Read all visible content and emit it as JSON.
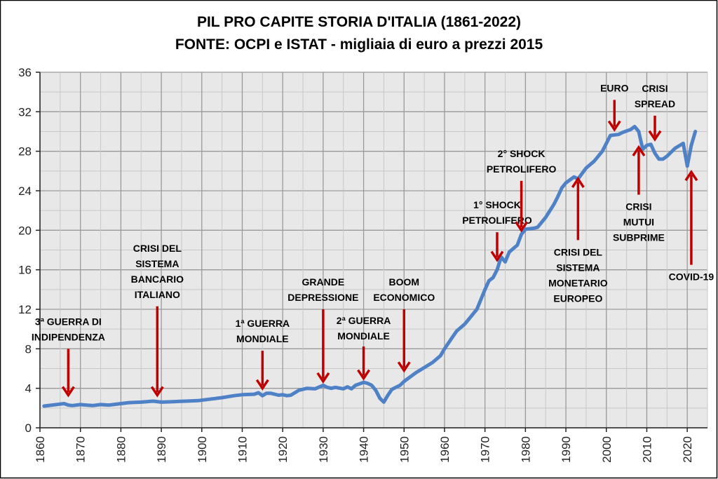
{
  "chart_data": {
    "type": "line",
    "title": "PIL PRO CAPITE STORIA D'ITALIA (1861-2022)",
    "subtitle": "FONTE: OCPI e ISTAT - migliaia di euro a prezzi 2015",
    "xlabel": "",
    "ylabel": "",
    "xlim": [
      1860,
      2025
    ],
    "ylim": [
      0,
      36
    ],
    "x_ticks": [
      "1860",
      "1870",
      "1880",
      "1890",
      "1900",
      "1910",
      "1920",
      "1930",
      "1940",
      "1950",
      "1960",
      "1970",
      "1980",
      "1990",
      "2000",
      "2010",
      "2020"
    ],
    "y_ticks": [
      "0",
      "4",
      "8",
      "12",
      "16",
      "20",
      "24",
      "28",
      "32",
      "36"
    ],
    "grid": true,
    "line_color": "#4f81c6",
    "arrow_color": "#c00000",
    "series": [
      {
        "name": "PIL pro capite",
        "points": [
          [
            1861,
            2.2
          ],
          [
            1863,
            2.3
          ],
          [
            1865,
            2.4
          ],
          [
            1866,
            2.45
          ],
          [
            1867,
            2.3
          ],
          [
            1868,
            2.25
          ],
          [
            1870,
            2.35
          ],
          [
            1873,
            2.25
          ],
          [
            1875,
            2.35
          ],
          [
            1877,
            2.3
          ],
          [
            1880,
            2.45
          ],
          [
            1882,
            2.55
          ],
          [
            1885,
            2.6
          ],
          [
            1888,
            2.7
          ],
          [
            1890,
            2.6
          ],
          [
            1893,
            2.65
          ],
          [
            1896,
            2.7
          ],
          [
            1899,
            2.75
          ],
          [
            1902,
            2.9
          ],
          [
            1905,
            3.05
          ],
          [
            1908,
            3.25
          ],
          [
            1910,
            3.35
          ],
          [
            1913,
            3.4
          ],
          [
            1914,
            3.55
          ],
          [
            1915,
            3.25
          ],
          [
            1916,
            3.5
          ],
          [
            1917,
            3.5
          ],
          [
            1919,
            3.3
          ],
          [
            1920,
            3.35
          ],
          [
            1921,
            3.25
          ],
          [
            1922,
            3.3
          ],
          [
            1924,
            3.8
          ],
          [
            1926,
            4.0
          ],
          [
            1928,
            3.95
          ],
          [
            1930,
            4.3
          ],
          [
            1931,
            4.1
          ],
          [
            1932,
            4.0
          ],
          [
            1933,
            4.1
          ],
          [
            1935,
            3.95
          ],
          [
            1936,
            4.15
          ],
          [
            1937,
            3.95
          ],
          [
            1938,
            4.3
          ],
          [
            1940,
            4.6
          ],
          [
            1941,
            4.5
          ],
          [
            1942,
            4.3
          ],
          [
            1943,
            3.8
          ],
          [
            1944,
            3.0
          ],
          [
            1945,
            2.6
          ],
          [
            1946,
            3.3
          ],
          [
            1947,
            3.9
          ],
          [
            1949,
            4.3
          ],
          [
            1950,
            4.7
          ],
          [
            1952,
            5.3
          ],
          [
            1953,
            5.6
          ],
          [
            1955,
            6.1
          ],
          [
            1957,
            6.6
          ],
          [
            1959,
            7.3
          ],
          [
            1960,
            8.0
          ],
          [
            1962,
            9.2
          ],
          [
            1963,
            9.8
          ],
          [
            1965,
            10.5
          ],
          [
            1966,
            11.0
          ],
          [
            1968,
            12.0
          ],
          [
            1970,
            14.0
          ],
          [
            1971,
            14.9
          ],
          [
            1972,
            15.2
          ],
          [
            1973,
            16.0
          ],
          [
            1974,
            17.3
          ],
          [
            1975,
            16.8
          ],
          [
            1976,
            17.8
          ],
          [
            1978,
            18.5
          ],
          [
            1979,
            19.6
          ],
          [
            1980,
            20.1
          ],
          [
            1982,
            20.2
          ],
          [
            1983,
            20.3
          ],
          [
            1985,
            21.3
          ],
          [
            1987,
            22.6
          ],
          [
            1988,
            23.4
          ],
          [
            1989,
            24.3
          ],
          [
            1990,
            24.8
          ],
          [
            1992,
            25.4
          ],
          [
            1993,
            25.2
          ],
          [
            1995,
            26.3
          ],
          [
            1997,
            27.0
          ],
          [
            1999,
            28.0
          ],
          [
            2000,
            28.8
          ],
          [
            2001,
            29.6
          ],
          [
            2003,
            29.7
          ],
          [
            2004,
            29.9
          ],
          [
            2006,
            30.2
          ],
          [
            2007,
            30.5
          ],
          [
            2008,
            30.0
          ],
          [
            2009,
            28.2
          ],
          [
            2010,
            28.6
          ],
          [
            2011,
            28.7
          ],
          [
            2012,
            27.8
          ],
          [
            2013,
            27.2
          ],
          [
            2014,
            27.2
          ],
          [
            2015,
            27.5
          ],
          [
            2017,
            28.3
          ],
          [
            2019,
            28.8
          ],
          [
            2020,
            26.5
          ],
          [
            2021,
            28.6
          ],
          [
            2022,
            30.0
          ]
        ]
      }
    ],
    "annotations": [
      {
        "lines": [
          "3ª GUERRA DI",
          "INDIPENDENZA"
        ],
        "year": 1867,
        "from": 8.0,
        "to": 3.3
      },
      {
        "lines": [
          "CRISI DEL",
          "SISTEMA",
          "BANCARIO",
          "ITALIANO"
        ],
        "year": 1889,
        "from": 12.3,
        "to": 3.3
      },
      {
        "lines": [
          "1ª GUERRA",
          "MONDIALE"
        ],
        "year": 1915,
        "from": 7.8,
        "to": 4.0
      },
      {
        "lines": [
          "GRANDE",
          "DEPRESSIONE"
        ],
        "year": 1930,
        "from": 12.0,
        "to": 4.7
      },
      {
        "lines": [
          "2ª GUERRA",
          "MONDIALE"
        ],
        "year": 1940,
        "from": 12.0,
        "to": 5.0
      },
      {
        "lines": [
          "BOOM",
          "ECONOMICO"
        ],
        "year": 1950,
        "from": 12.0,
        "to": 5.8
      },
      {
        "lines": [
          "1° SHOCK",
          "PETROLIFERO"
        ],
        "year": 1973,
        "from": 19.8,
        "to": 17.0
      },
      {
        "lines": [
          "2° SHOCK",
          "PETROLIFERO"
        ],
        "year": 1979,
        "from": 25.0,
        "to": 20.0
      },
      {
        "lines": [
          "CRISI DEL",
          "SISTEMA",
          "MONETARIO",
          "EUROPEO"
        ],
        "year": 1993,
        "from": 19.0,
        "to": 25.2
      },
      {
        "lines": [
          "EURO"
        ],
        "year": 2002,
        "from": 33.2,
        "to": 30.2
      },
      {
        "lines": [
          "CRISI",
          "SPREAD"
        ],
        "year": 2012,
        "from": 31.6,
        "to": 29.2
      },
      {
        "lines": [
          "CRISI",
          "MUTUI",
          "SUBPRIME"
        ],
        "year": 2008,
        "from": 23.6,
        "to": 28.4
      },
      {
        "lines": [
          "COVID-19"
        ],
        "year": 2021,
        "from": 16.5,
        "to": 25.9
      }
    ]
  }
}
